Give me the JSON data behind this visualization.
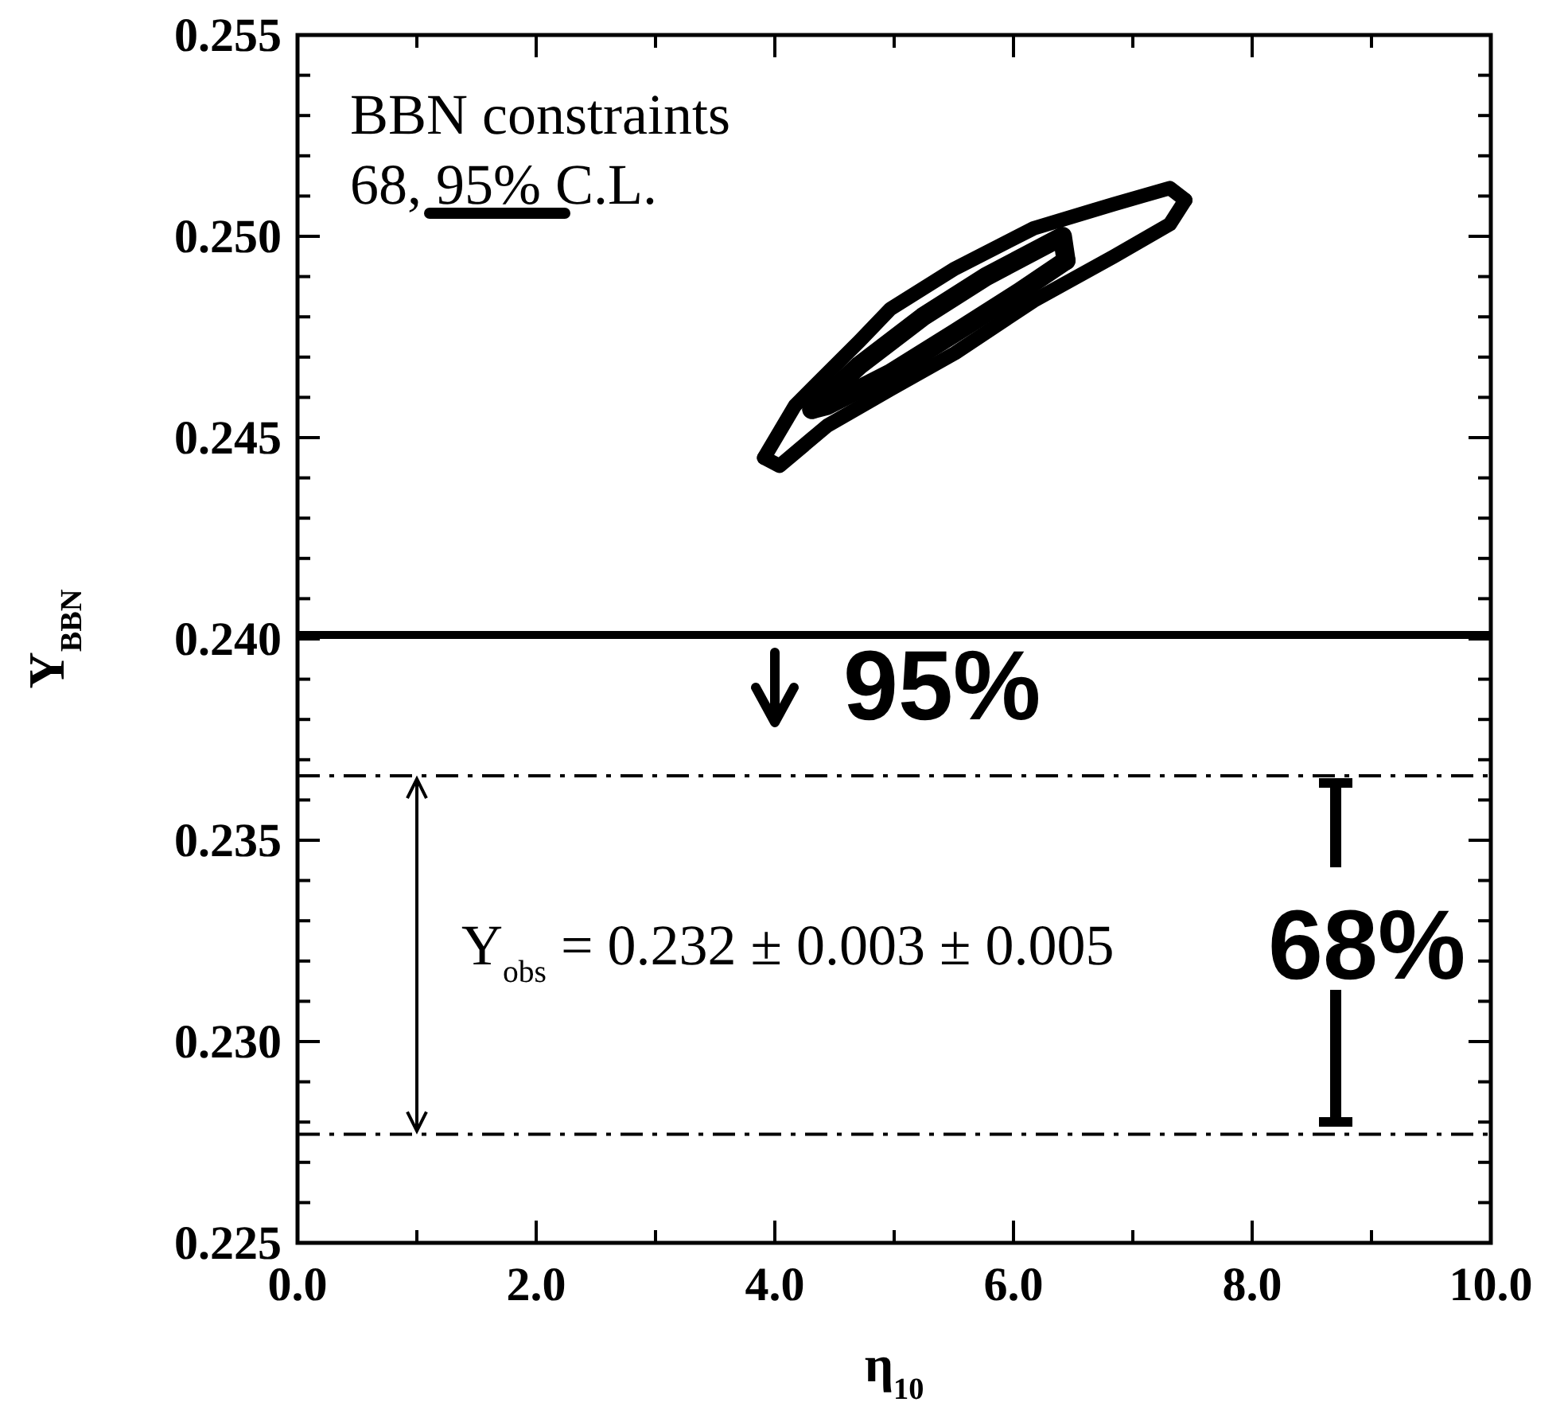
{
  "chart_data": {
    "type": "line",
    "xlabel": "η$_{10}$",
    "ylabel": "Y$_{BBN}$",
    "xlim": [
      0,
      10
    ],
    "ylim": [
      0.225,
      0.255
    ],
    "xticks": [
      {
        "value": 0,
        "label": "0.0"
      },
      {
        "value": 1,
        "label": null
      },
      {
        "value": 2,
        "label": "2.0"
      },
      {
        "value": 3,
        "label": null
      },
      {
        "value": 4,
        "label": "4.0"
      },
      {
        "value": 5,
        "label": null
      },
      {
        "value": 6,
        "label": "6.0"
      },
      {
        "value": 7,
        "label": null
      },
      {
        "value": 8,
        "label": "8.0"
      },
      {
        "value": 9,
        "label": null
      },
      {
        "value": 10,
        "label": "10.0"
      }
    ],
    "yticks": [
      0.225,
      {
        "value": 0.226,
        "label": null
      },
      {
        "value": 0.227,
        "label": null
      },
      {
        "value": 0.228,
        "label": null
      },
      {
        "value": 0.229,
        "label": null
      },
      {
        "value": 0.23,
        "label": "0.230"
      },
      {
        "value": 0.231,
        "label": null
      },
      {
        "value": 0.232,
        "label": null
      },
      {
        "value": 0.233,
        "label": null
      },
      {
        "value": 0.234,
        "label": null
      },
      0.235,
      {
        "value": 0.236,
        "label": null
      },
      {
        "value": 0.237,
        "label": null
      },
      {
        "value": 0.238,
        "label": null
      },
      {
        "value": 0.239,
        "label": null
      },
      {
        "value": 0.24,
        "label": "0.240"
      },
      {
        "value": 0.241,
        "label": null
      },
      {
        "value": 0.242,
        "label": null
      },
      {
        "value": 0.243,
        "label": null
      },
      {
        "value": 0.244,
        "label": null
      },
      0.245,
      {
        "value": 0.246,
        "label": null
      },
      {
        "value": 0.247,
        "label": null
      },
      {
        "value": 0.248,
        "label": null
      },
      {
        "value": 0.249,
        "label": null
      },
      {
        "value": 0.25,
        "label": "0.250"
      },
      {
        "value": 0.251,
        "label": null
      },
      {
        "value": 0.252,
        "label": null
      },
      {
        "value": 0.253,
        "label": null
      },
      {
        "value": 0.254,
        "label": null
      },
      0.255
    ],
    "grid": false,
    "series": [
      {
        "color": "#000000",
        "line_style": "solid",
        "x": [
          3.91,
          4.17,
          4.71,
          4.97,
          5.51,
          6.17,
          6.84,
          7.31,
          7.44
        ],
        "values": [
          0.2445,
          0.2458,
          0.2474,
          0.2482,
          0.2492,
          0.2502,
          0.2508,
          0.2512,
          0.2509
        ]
      },
      {
        "color": "#000000",
        "line_style": "solid",
        "x": [
          3.91,
          4.04,
          4.44,
          4.97,
          5.51,
          6.17,
          6.84,
          7.31,
          7.44
        ],
        "values": [
          0.2445,
          0.2443,
          0.2453,
          0.2462,
          0.2471,
          0.2484,
          0.2495,
          0.2503,
          0.2509
        ]
      },
      {
        "color": "#000000",
        "line_style": "solid",
        "x": [
          4.31,
          4.71,
          5.24,
          5.77,
          6.41,
          6.44
        ],
        "values": [
          0.2457,
          0.2468,
          0.248,
          0.249,
          0.25,
          0.2494
        ]
      },
      {
        "color": "#000000",
        "line_style": "solid",
        "x": [
          4.31,
          4.44,
          4.97,
          5.51,
          6.04,
          6.44
        ],
        "values": [
          0.2457,
          0.2458,
          0.2466,
          0.2476,
          0.2486,
          0.2494
        ]
      }
    ],
    "ref_lines": [
      {
        "axis": "y",
        "value": 0.2401,
        "line_style": "solid",
        "color": "#000000"
      },
      {
        "axis": "y",
        "value": 0.2366,
        "line_style": "dashed",
        "color": "#000000"
      },
      {
        "axis": "y",
        "value": 0.2277,
        "line_style": "dashed",
        "color": "#000000"
      }
    ],
    "annotations": [
      "BBN constraints",
      "68, 95% C.L.",
      "95%",
      "Y$_{obs}$ = 0.232 ± 0.003 ± 0.005",
      "68%"
    ]
  }
}
